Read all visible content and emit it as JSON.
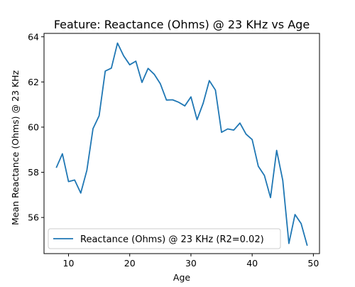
{
  "chart_data": {
    "type": "line",
    "title": "Feature: Reactance (Ohms) @ 23 KHz vs Age",
    "xlabel": "Age",
    "ylabel": "Mean Reactance (Ohms) @ 23 KHz",
    "xlim": [
      6.0,
      51.0
    ],
    "ylim": [
      54.4,
      64.15
    ],
    "xticks": [
      10,
      20,
      30,
      40,
      50
    ],
    "yticks": [
      56,
      58,
      60,
      62,
      64
    ],
    "grid": false,
    "legend": {
      "position": "lower-left"
    },
    "colors": {
      "series": "#1f77b4"
    },
    "series": [
      {
        "name": "Reactance (Ohms) @ 23 KHz (R2=0.02)",
        "x": [
          8,
          9,
          10,
          11,
          12,
          13,
          14,
          15,
          16,
          17,
          18,
          19,
          20,
          21,
          22,
          23,
          24,
          25,
          26,
          27,
          28,
          29,
          30,
          31,
          32,
          33,
          34,
          35,
          36,
          37,
          38,
          39,
          40,
          41,
          42,
          43,
          44,
          45,
          46,
          47,
          48,
          49
        ],
        "values": [
          58.2,
          58.82,
          57.59,
          57.66,
          57.08,
          58.09,
          59.93,
          60.5,
          62.48,
          62.61,
          63.72,
          63.16,
          62.76,
          62.92,
          61.98,
          62.6,
          62.34,
          61.92,
          61.2,
          61.21,
          61.1,
          60.94,
          61.34,
          60.33,
          61.06,
          62.06,
          61.64,
          59.77,
          59.92,
          59.87,
          60.18,
          59.69,
          59.45,
          58.27,
          57.86,
          56.88,
          58.97,
          57.64,
          54.85,
          56.13,
          55.73,
          54.75
        ]
      }
    ]
  }
}
